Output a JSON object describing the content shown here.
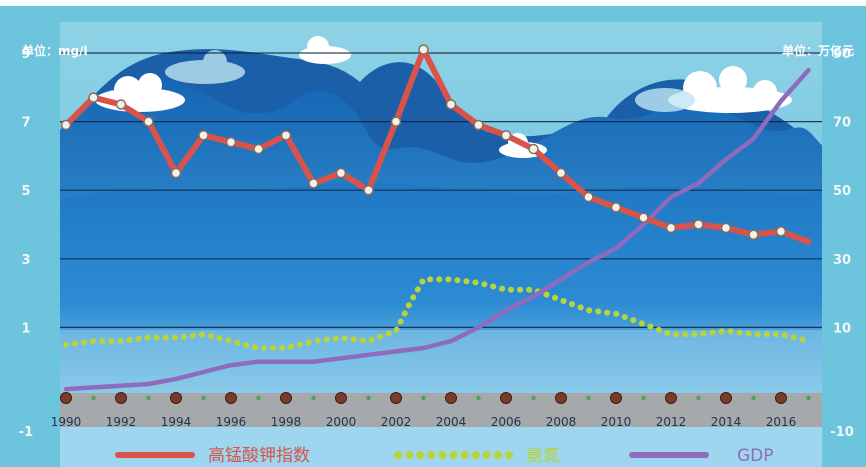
{
  "chart_data": {
    "type": "line",
    "y_unit_left": "单位：mg/l",
    "y_unit_right": "单位：万亿元",
    "y_left_ticks": [
      "-1",
      "1",
      "3",
      "5",
      "7",
      "9"
    ],
    "y_right_ticks": [
      "-10",
      "10",
      "30",
      "50",
      "70",
      "90"
    ],
    "ylim_left": [
      -1,
      9
    ],
    "ylim_right": [
      -10,
      90
    ],
    "xlim": [
      1990,
      2017.5
    ],
    "x_tick_labels": [
      "1990",
      "1992",
      "1994",
      "1996",
      "1998",
      "2000",
      "2002",
      "2004",
      "2006",
      "2008",
      "2010",
      "2012",
      "2014",
      "2016"
    ],
    "grid": true,
    "legend_position": "bottom",
    "series": [
      {
        "name": "高锰酸钾指数",
        "axis": "left",
        "color": "#d9534a",
        "style": "solid",
        "x": [
          1990,
          1991,
          1992,
          1993,
          1994,
          1995,
          1996,
          1997,
          1998,
          1999,
          2000,
          2001,
          2002,
          2003,
          2004,
          2005,
          2006,
          2007,
          2008,
          2009,
          2010,
          2011,
          2012,
          2013,
          2014,
          2015,
          2016,
          2017
        ],
        "y": [
          6.9,
          7.7,
          7.5,
          7.0,
          5.5,
          6.6,
          6.4,
          6.2,
          6.6,
          5.2,
          5.5,
          5.0,
          7.0,
          9.1,
          7.5,
          6.9,
          6.6,
          6.2,
          5.5,
          4.8,
          4.5,
          4.2,
          3.9,
          4.0,
          3.9,
          3.7,
          3.8,
          3.5
        ]
      },
      {
        "name": "氨氮",
        "axis": "left",
        "color": "#b8d43a",
        "style": "dotted",
        "x": [
          1990,
          1991,
          1992,
          1993,
          1994,
          1995,
          1996,
          1997,
          1998,
          1999,
          2000,
          2001,
          2002,
          2002.5,
          2003,
          2004,
          2005,
          2006,
          2007,
          2008,
          2009,
          2010,
          2011,
          2012,
          2013,
          2014,
          2015,
          2016,
          2017
        ],
        "y": [
          0.5,
          0.6,
          0.6,
          0.7,
          0.7,
          0.8,
          0.6,
          0.4,
          0.4,
          0.6,
          0.7,
          0.6,
          0.9,
          1.7,
          2.4,
          2.4,
          2.3,
          2.1,
          2.1,
          1.8,
          1.5,
          1.4,
          1.1,
          0.8,
          0.8,
          0.9,
          0.8,
          0.8,
          0.6
        ]
      },
      {
        "name": "GDP",
        "axis": "right",
        "color": "#8e6bbd",
        "style": "solid",
        "x": [
          1990,
          1991,
          1992,
          1993,
          1994,
          1995,
          1996,
          1997,
          1998,
          1999,
          2000,
          2001,
          2002,
          2003,
          2004,
          2005,
          2006,
          2007,
          2008,
          2009,
          2010,
          2011,
          2012,
          2013,
          2014,
          2015,
          2016,
          2017
        ],
        "y": [
          -8,
          -7.5,
          -7,
          -6.5,
          -5,
          -3,
          -1,
          0,
          0,
          0,
          1,
          2,
          3,
          4,
          6,
          10,
          15,
          19,
          24,
          29,
          33,
          40,
          48,
          52,
          59,
          65,
          76,
          85
        ]
      }
    ]
  }
}
